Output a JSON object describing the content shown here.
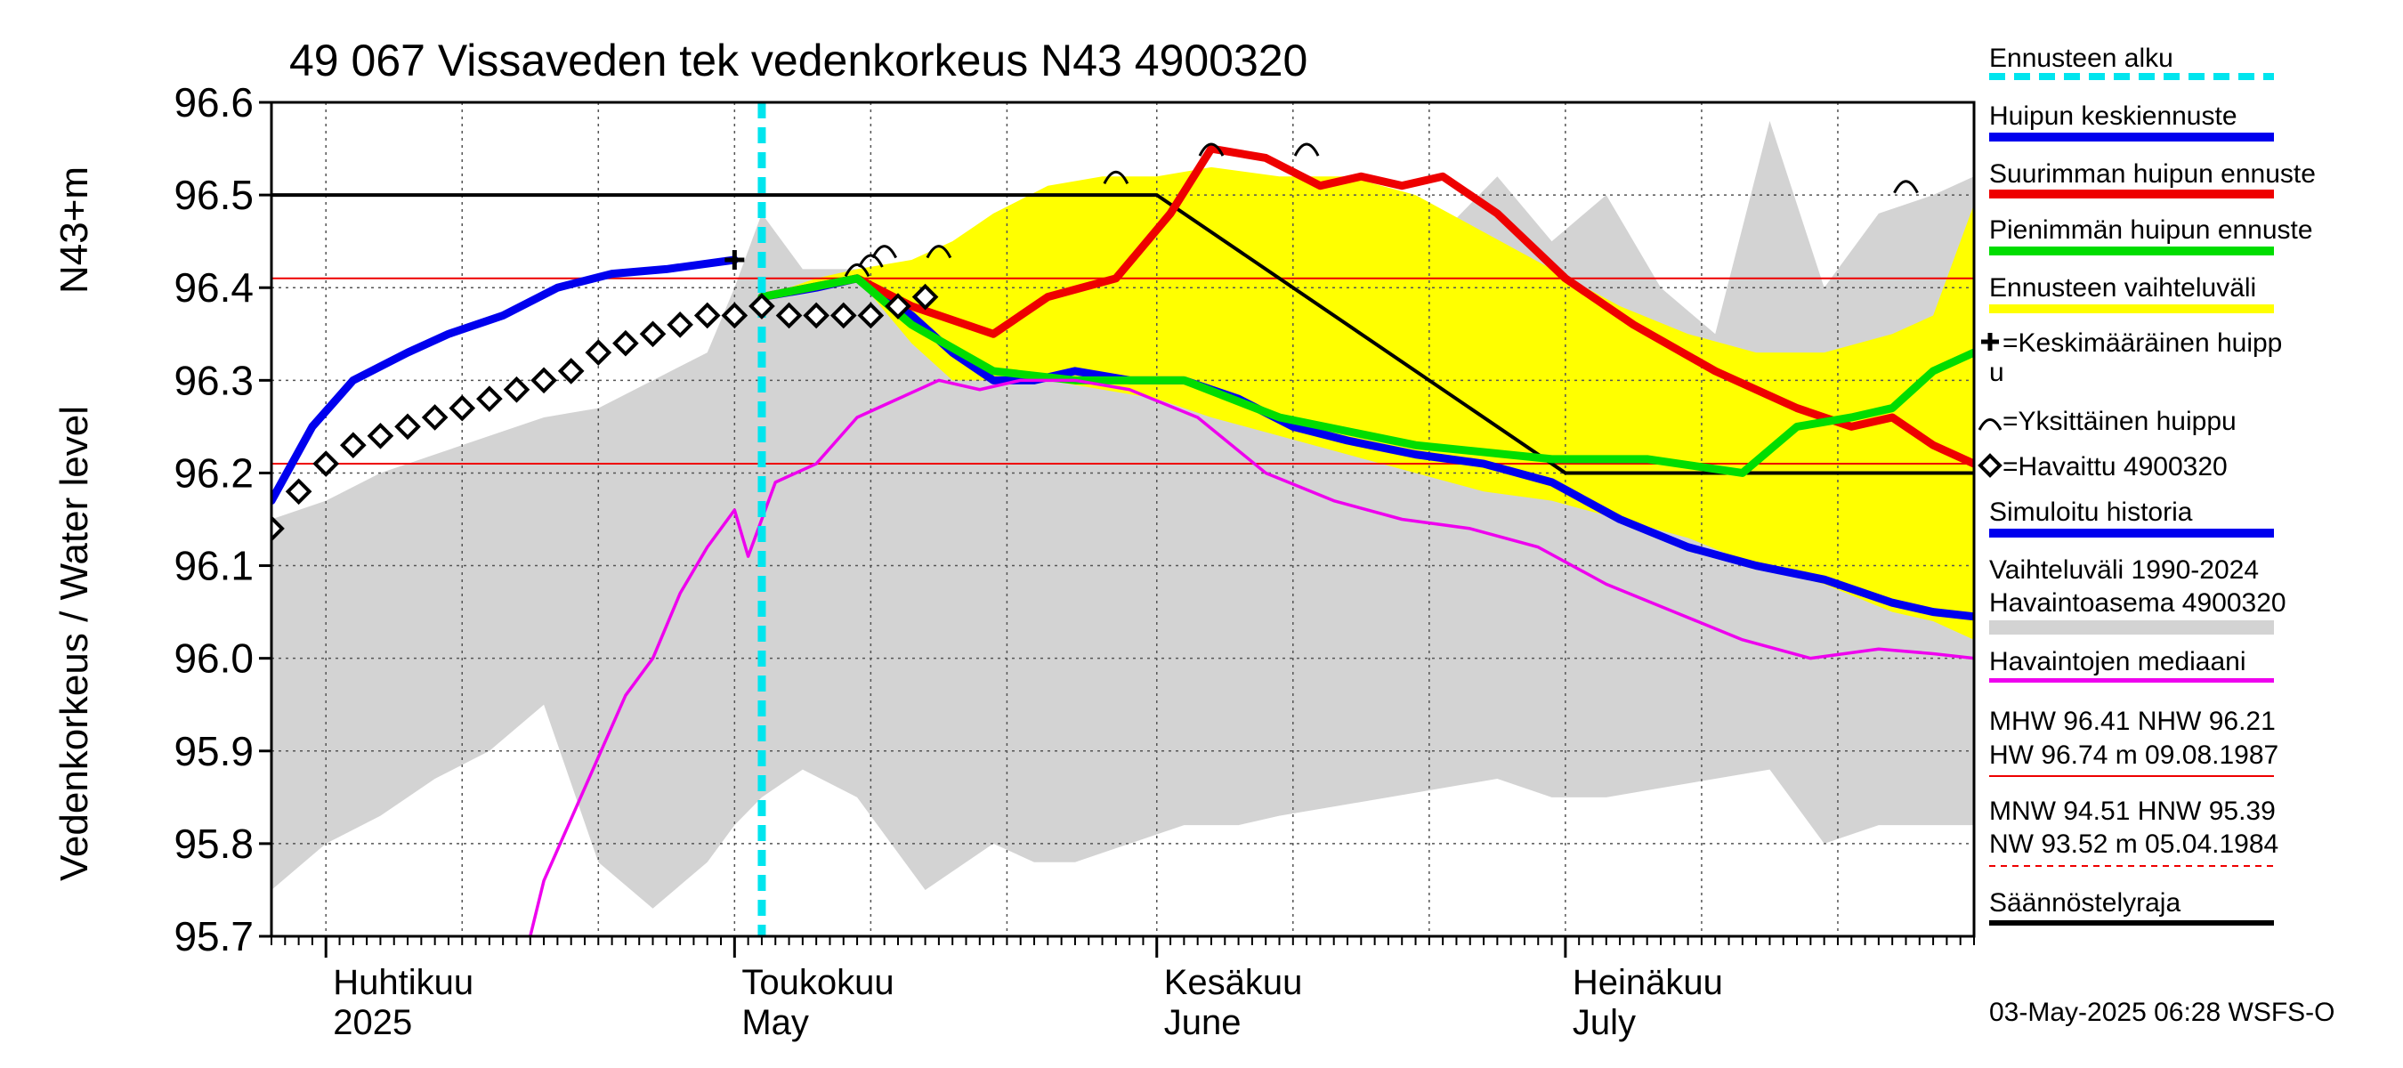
{
  "chart_data": {
    "type": "line",
    "title": "49 067 Vissaveden tek vedenkorkeus N43 4900320",
    "ylabel_top": "N43+m",
    "ylabel": "Vedenkorkeus / Water level",
    "ylim": [
      95.7,
      96.6
    ],
    "yticks": [
      "96.6",
      "96.5",
      "96.4",
      "96.3",
      "96.2",
      "96.1",
      "96.0",
      "95.9",
      "95.8",
      "95.7"
    ],
    "xlim": [
      "2025-03-28",
      "2025-07-31"
    ],
    "grid": true,
    "months": [
      {
        "date": "2025-04-01",
        "fi": "Huhtikuu",
        "en": "2025"
      },
      {
        "date": "2025-05-01",
        "fi": "Toukokuu",
        "en": "May"
      },
      {
        "date": "2025-06-01",
        "fi": "Kesäkuu",
        "en": "June"
      },
      {
        "date": "2025-07-01",
        "fi": "Heinäkuu",
        "en": "July"
      }
    ],
    "forecast_start": "2025-05-03",
    "reference_levels": {
      "MHW": 96.41,
      "NHW": 96.21,
      "regulation_limit": [
        {
          "date": "2025-03-28",
          "y": 96.5
        },
        {
          "date": "2025-06-01",
          "y": 96.5
        },
        {
          "date": "2025-07-01",
          "y": 96.2
        },
        {
          "date": "2025-07-31",
          "y": 96.2
        }
      ]
    },
    "series": [
      {
        "name": "Huipun keskiennuste",
        "color": "#0000ee",
        "points": [
          [
            "2025-03-28",
            96.17
          ],
          [
            "2025-03-31",
            96.25
          ],
          [
            "2025-04-03",
            96.3
          ],
          [
            "2025-04-07",
            96.33
          ],
          [
            "2025-04-10",
            96.35
          ],
          [
            "2025-04-14",
            96.37
          ],
          [
            "2025-04-18",
            96.4
          ],
          [
            "2025-04-22",
            96.415
          ],
          [
            "2025-04-26",
            96.42
          ],
          [
            "2025-05-01",
            96.43
          ]
        ]
      },
      {
        "name": "Simuloitu historia",
        "color": "#0000ee",
        "points": [
          [
            "2025-05-03",
            96.39
          ],
          [
            "2025-05-07",
            96.4
          ],
          [
            "2025-05-10",
            96.41
          ],
          [
            "2025-05-14",
            96.37
          ],
          [
            "2025-05-17",
            96.33
          ],
          [
            "2025-05-20",
            96.3
          ],
          [
            "2025-05-23",
            96.3
          ],
          [
            "2025-05-26",
            96.31
          ],
          [
            "2025-05-30",
            96.3
          ],
          [
            "2025-06-03",
            96.3
          ],
          [
            "2025-06-07",
            96.28
          ],
          [
            "2025-06-11",
            96.25
          ],
          [
            "2025-06-15",
            96.235
          ],
          [
            "2025-06-20",
            96.22
          ],
          [
            "2025-06-25",
            96.21
          ],
          [
            "2025-06-30",
            96.19
          ],
          [
            "2025-07-05",
            96.15
          ],
          [
            "2025-07-10",
            96.12
          ],
          [
            "2025-07-15",
            96.1
          ],
          [
            "2025-07-20",
            96.085
          ],
          [
            "2025-07-25",
            96.06
          ],
          [
            "2025-07-28",
            96.05
          ],
          [
            "2025-07-31",
            96.045
          ]
        ]
      },
      {
        "name": "Suurimman huipun ennuste",
        "color": "#ee0000",
        "points": [
          [
            "2025-05-03",
            96.39
          ],
          [
            "2025-05-10",
            96.41
          ],
          [
            "2025-05-14",
            96.38
          ],
          [
            "2025-05-20",
            96.35
          ],
          [
            "2025-05-24",
            96.39
          ],
          [
            "2025-05-29",
            96.41
          ],
          [
            "2025-06-02",
            96.48
          ],
          [
            "2025-06-05",
            96.55
          ],
          [
            "2025-06-09",
            96.54
          ],
          [
            "2025-06-13",
            96.51
          ],
          [
            "2025-06-16",
            96.52
          ],
          [
            "2025-06-19",
            96.51
          ],
          [
            "2025-06-22",
            96.52
          ],
          [
            "2025-06-26",
            96.48
          ],
          [
            "2025-07-01",
            96.41
          ],
          [
            "2025-07-06",
            96.36
          ],
          [
            "2025-07-12",
            96.31
          ],
          [
            "2025-07-18",
            96.27
          ],
          [
            "2025-07-22",
            96.25
          ],
          [
            "2025-07-25",
            96.26
          ],
          [
            "2025-07-28",
            96.23
          ],
          [
            "2025-07-31",
            96.21
          ]
        ]
      },
      {
        "name": "Pienimmän huipun ennuste",
        "color": "#00dd00",
        "points": [
          [
            "2025-05-03",
            96.39
          ],
          [
            "2025-05-10",
            96.41
          ],
          [
            "2025-05-14",
            96.36
          ],
          [
            "2025-05-20",
            96.31
          ],
          [
            "2025-05-26",
            96.3
          ],
          [
            "2025-06-03",
            96.3
          ],
          [
            "2025-06-10",
            96.26
          ],
          [
            "2025-06-20",
            96.23
          ],
          [
            "2025-06-30",
            96.215
          ],
          [
            "2025-07-07",
            96.215
          ],
          [
            "2025-07-14",
            96.2
          ],
          [
            "2025-07-18",
            96.25
          ],
          [
            "2025-07-22",
            96.26
          ],
          [
            "2025-07-25",
            96.27
          ],
          [
            "2025-07-28",
            96.31
          ],
          [
            "2025-07-31",
            96.33
          ]
        ]
      },
      {
        "name": "Havaintojen mediaani",
        "color": "#ee00ee",
        "points": [
          [
            "2025-04-16",
            95.7
          ],
          [
            "2025-04-17",
            95.76
          ],
          [
            "2025-04-20",
            95.86
          ],
          [
            "2025-04-23",
            95.96
          ],
          [
            "2025-04-25",
            96.0
          ],
          [
            "2025-04-27",
            96.07
          ],
          [
            "2025-04-29",
            96.12
          ],
          [
            "2025-05-01",
            96.16
          ],
          [
            "2025-05-02",
            96.11
          ],
          [
            "2025-05-04",
            96.19
          ],
          [
            "2025-05-07",
            96.21
          ],
          [
            "2025-05-10",
            96.26
          ],
          [
            "2025-05-13",
            96.28
          ],
          [
            "2025-05-16",
            96.3
          ],
          [
            "2025-05-19",
            96.29
          ],
          [
            "2025-05-22",
            96.3
          ],
          [
            "2025-05-26",
            96.3
          ],
          [
            "2025-05-30",
            96.29
          ],
          [
            "2025-06-04",
            96.26
          ],
          [
            "2025-06-09",
            96.2
          ],
          [
            "2025-06-14",
            96.17
          ],
          [
            "2025-06-19",
            96.15
          ],
          [
            "2025-06-24",
            96.14
          ],
          [
            "2025-06-29",
            96.12
          ],
          [
            "2025-07-04",
            96.08
          ],
          [
            "2025-07-09",
            96.05
          ],
          [
            "2025-07-14",
            96.02
          ],
          [
            "2025-07-19",
            96.0
          ],
          [
            "2025-07-24",
            96.01
          ],
          [
            "2025-07-28",
            96.005
          ],
          [
            "2025-07-31",
            96.0
          ]
        ]
      }
    ],
    "observed": {
      "name": "Havaittu 4900320",
      "points": [
        [
          "2025-03-28",
          96.14
        ],
        [
          "2025-03-30",
          96.18
        ],
        [
          "2025-04-01",
          96.21
        ],
        [
          "2025-04-03",
          96.23
        ],
        [
          "2025-04-05",
          96.24
        ],
        [
          "2025-04-07",
          96.25
        ],
        [
          "2025-04-09",
          96.26
        ],
        [
          "2025-04-11",
          96.27
        ],
        [
          "2025-04-13",
          96.28
        ],
        [
          "2025-04-15",
          96.29
        ],
        [
          "2025-04-17",
          96.3
        ],
        [
          "2025-04-19",
          96.31
        ],
        [
          "2025-04-21",
          96.33
        ],
        [
          "2025-04-23",
          96.34
        ],
        [
          "2025-04-25",
          96.35
        ],
        [
          "2025-04-27",
          96.36
        ],
        [
          "2025-04-29",
          96.37
        ],
        [
          "2025-05-01",
          96.37
        ],
        [
          "2025-05-03",
          96.38
        ],
        [
          "2025-05-05",
          96.37
        ],
        [
          "2025-05-07",
          96.37
        ],
        [
          "2025-05-09",
          96.37
        ],
        [
          "2025-05-11",
          96.37
        ],
        [
          "2025-05-13",
          96.38
        ],
        [
          "2025-05-15",
          96.39
        ]
      ]
    },
    "mean_peak": {
      "date": "2025-05-01",
      "y": 96.43
    },
    "individual_peaks": [
      [
        "2025-05-10",
        96.42
      ],
      [
        "2025-05-11",
        96.43
      ],
      [
        "2025-05-12",
        96.44
      ],
      [
        "2025-05-16",
        96.44
      ],
      [
        "2025-05-29",
        96.52
      ],
      [
        "2025-06-05",
        96.55
      ],
      [
        "2025-06-12",
        96.55
      ],
      [
        "2025-07-26",
        96.51
      ]
    ],
    "forecast_band": {
      "x": [
        "2025-05-03",
        "2025-05-07",
        "2025-05-10",
        "2025-05-14",
        "2025-05-17",
        "2025-05-20",
        "2025-05-24",
        "2025-05-28",
        "2025-06-01",
        "2025-06-05",
        "2025-06-10",
        "2025-06-15",
        "2025-06-20",
        "2025-06-25",
        "2025-06-30",
        "2025-07-05",
        "2025-07-10",
        "2025-07-15",
        "2025-07-20",
        "2025-07-25",
        "2025-07-28",
        "2025-07-31"
      ],
      "upper": [
        96.39,
        96.41,
        96.42,
        96.43,
        96.45,
        96.48,
        96.51,
        96.52,
        96.52,
        96.53,
        96.52,
        96.52,
        96.5,
        96.46,
        96.42,
        96.38,
        96.35,
        96.33,
        96.33,
        96.35,
        96.37,
        96.49
      ],
      "lower": [
        96.39,
        96.4,
        96.41,
        96.34,
        96.3,
        96.3,
        96.3,
        96.29,
        96.28,
        96.26,
        96.24,
        96.22,
        96.2,
        96.18,
        96.17,
        96.15,
        96.13,
        96.1,
        96.08,
        96.05,
        96.04,
        96.02
      ]
    },
    "history_band": {
      "x": [
        "2025-03-28",
        "2025-04-01",
        "2025-04-05",
        "2025-04-09",
        "2025-04-13",
        "2025-04-17",
        "2025-04-21",
        "2025-04-25",
        "2025-04-29",
        "2025-05-01",
        "2025-05-03",
        "2025-05-06",
        "2025-05-10",
        "2025-05-15",
        "2025-05-20",
        "2025-05-23",
        "2025-05-26",
        "2025-05-30",
        "2025-06-03",
        "2025-06-07",
        "2025-06-10",
        "2025-06-14",
        "2025-06-18",
        "2025-06-22",
        "2025-06-26",
        "2025-06-30",
        "2025-07-04",
        "2025-07-08",
        "2025-07-12",
        "2025-07-16",
        "2025-07-20",
        "2025-07-24",
        "2025-07-28",
        "2025-07-31"
      ],
      "upper": [
        96.15,
        96.17,
        96.2,
        96.22,
        96.24,
        96.26,
        96.27,
        96.3,
        96.33,
        96.4,
        96.48,
        96.42,
        96.42,
        96.42,
        96.43,
        96.48,
        96.44,
        96.48,
        96.47,
        96.46,
        96.45,
        96.45,
        96.45,
        96.46,
        96.52,
        96.45,
        96.5,
        96.4,
        96.35,
        96.58,
        96.4,
        96.48,
        96.5,
        96.52
      ],
      "lower": [
        95.75,
        95.8,
        95.83,
        95.87,
        95.9,
        95.95,
        95.78,
        95.73,
        95.78,
        95.82,
        95.85,
        95.88,
        95.85,
        95.75,
        95.8,
        95.78,
        95.78,
        95.8,
        95.82,
        95.82,
        95.83,
        95.84,
        95.85,
        95.86,
        95.87,
        95.85,
        95.85,
        95.86,
        95.87,
        95.88,
        95.8,
        95.82,
        95.82,
        95.82
      ]
    }
  },
  "legend": {
    "items": [
      {
        "label": "Ennusteen alku",
        "kind": "dashed",
        "color": "#00e5ee"
      },
      {
        "label": "Huipun keskiennuste",
        "kind": "bar",
        "color": "#0000ee"
      },
      {
        "label": "Suurimman huipun ennuste",
        "kind": "bar",
        "color": "#ee0000"
      },
      {
        "label": "Pienimmän huipun ennuste",
        "kind": "bar",
        "color": "#00dd00"
      },
      {
        "label": "Ennusteen vaihteluväli",
        "kind": "bar",
        "color": "#ffff00"
      }
    ],
    "mean_peak_line1": "=Keskimääräinen huipp",
    "mean_peak_line2": "u",
    "individual_peak": "=Yksittäinen huippu",
    "observed": "=Havaittu 4900320",
    "simulated": "Simuloitu historia",
    "range_line1": "Vaihteluväli 1990-2024",
    "range_line2": " Havaintoasema 4900320",
    "median": "Havaintojen mediaani",
    "stats_hw_line1": "MHW  96.41 NHW  96.21",
    "stats_hw_line2": "HW  96.74 m 09.08.1987",
    "stats_nw_line1": "MNW  94.51 HNW  95.39",
    "stats_nw_line2": "NW  93.52 m 05.04.1984",
    "regulation": "Säännöstelyraja"
  },
  "footer": {
    "timestamp": "03-May-2025 06:28 WSFS-O"
  },
  "colors": {
    "forecast_start": "#00e5ee",
    "mean_forecast": "#0000ee",
    "max_forecast": "#ee0000",
    "min_forecast": "#00dd00",
    "forecast_band": "#ffff00",
    "history_band": "#d3d3d3",
    "median": "#ee00ee",
    "reference": "#ee0000",
    "regulation": "#000000"
  }
}
